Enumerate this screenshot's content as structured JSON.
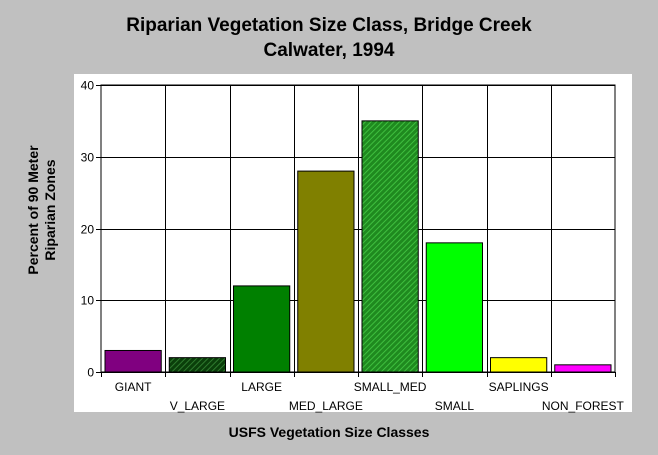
{
  "chart_data": {
    "type": "bar",
    "title_lines": [
      "Riparian Vegetation Size Class, Bridge Creek",
      "Calwater, 1994"
    ],
    "xlabel": "USFS Vegetation Size Classes",
    "ylabel_lines": [
      "Percent of 90 Meter",
      "Riparian Zones"
    ],
    "categories": [
      "GIANT",
      "V_LARGE",
      "LARGE",
      "MED_LARGE",
      "SMALL_MED",
      "SMALL",
      "SAPLINGS",
      "NON_FOREST"
    ],
    "values": [
      3,
      2,
      12,
      28,
      35,
      18,
      2,
      1
    ],
    "bar_colors": [
      "#800080",
      "#1f5f1f",
      "#008000",
      "#808000",
      "#2e9e2e",
      "#00ff00",
      "#ffff00",
      "#ff00ff"
    ],
    "bar_patterns": [
      "solid",
      "hatched",
      "solid",
      "solid",
      "hatched",
      "solid",
      "solid",
      "solid"
    ],
    "yticks": [
      0,
      10,
      20,
      30,
      40
    ],
    "ylim": [
      0,
      40
    ],
    "grid": true,
    "legend": "none"
  }
}
